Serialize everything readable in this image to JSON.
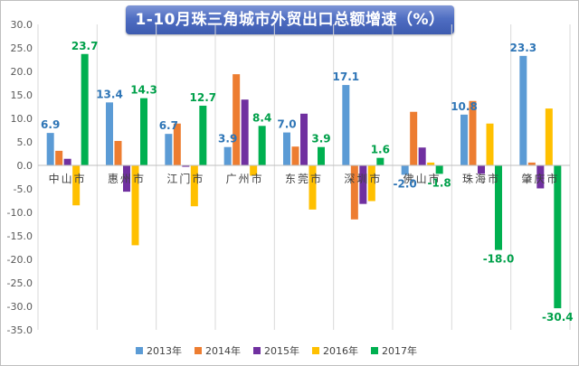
{
  "chart_data": {
    "type": "bar",
    "title": "1-10月珠三角城市外贸出口总额增速（%）",
    "categories": [
      "中山市",
      "惠州市",
      "江门市",
      "广州市",
      "东莞市",
      "深圳市",
      "佛山市",
      "珠海市",
      "肇庆市"
    ],
    "series": [
      {
        "name": "2013年",
        "color": "#5b9bd5",
        "values": [
          6.9,
          13.4,
          6.7,
          3.9,
          7.0,
          17.1,
          -2.0,
          10.8,
          23.3
        ]
      },
      {
        "name": "2014年",
        "color": "#ed7d31",
        "values": [
          3.1,
          5.2,
          8.9,
          19.4,
          4.0,
          -11.5,
          11.4,
          13.7,
          0.6
        ]
      },
      {
        "name": "2015年",
        "color": "#7030a0",
        "values": [
          1.4,
          -5.6,
          -0.3,
          14.0,
          11.0,
          -8.2,
          3.8,
          -1.8,
          -4.9
        ]
      },
      {
        "name": "2016年",
        "color": "#ffc000",
        "values": [
          -8.5,
          -17.0,
          -8.7,
          -2.2,
          -9.4,
          -7.6,
          0.6,
          8.9,
          12.1
        ]
      },
      {
        "name": "2017年",
        "color": "#00b050",
        "values": [
          23.7,
          14.3,
          12.7,
          8.4,
          3.9,
          1.6,
          -1.8,
          -18.0,
          -30.4
        ]
      }
    ],
    "data_labels": [
      {
        "category": "中山市",
        "series": "2013年",
        "text": "6.9"
      },
      {
        "category": "中山市",
        "series": "2017年",
        "text": "23.7"
      },
      {
        "category": "惠州市",
        "series": "2013年",
        "text": "13.4"
      },
      {
        "category": "惠州市",
        "series": "2017年",
        "text": "14.3"
      },
      {
        "category": "江门市",
        "series": "2013年",
        "text": "6.7"
      },
      {
        "category": "江门市",
        "series": "2017年",
        "text": "12.7"
      },
      {
        "category": "广州市",
        "series": "2013年",
        "text": "3.9"
      },
      {
        "category": "广州市",
        "series": "2017年",
        "text": "8.4"
      },
      {
        "category": "东莞市",
        "series": "2013年",
        "text": "7.0"
      },
      {
        "category": "东莞市",
        "series": "2017年",
        "text": "3.9"
      },
      {
        "category": "深圳市",
        "series": "2013年",
        "text": "17.1"
      },
      {
        "category": "深圳市",
        "series": "2017年",
        "text": "1.6"
      },
      {
        "category": "佛山市",
        "series": "2013年",
        "text": "-2.0"
      },
      {
        "category": "佛山市",
        "series": "2017年",
        "text": "-1.8"
      },
      {
        "category": "珠海市",
        "series": "2013年",
        "text": "10.8"
      },
      {
        "category": "珠海市",
        "series": "2017年",
        "text": "-18.0"
      },
      {
        "category": "肇庆市",
        "series": "2013年",
        "text": "23.3"
      },
      {
        "category": "肇庆市",
        "series": "2017年",
        "text": "-30.4"
      }
    ],
    "ylim": [
      -35,
      30
    ],
    "ytick_step": 5,
    "yticks": [
      "30.0",
      "25.0",
      "20.0",
      "15.0",
      "10.0",
      "5.0",
      "0.0",
      "-5.0",
      "-10.0",
      "-15.0",
      "-20.0",
      "-25.0",
      "-30.0",
      "-35.0"
    ],
    "grid": "vertical",
    "legend_position": "bottom",
    "xlabel": "",
    "ylabel": ""
  }
}
